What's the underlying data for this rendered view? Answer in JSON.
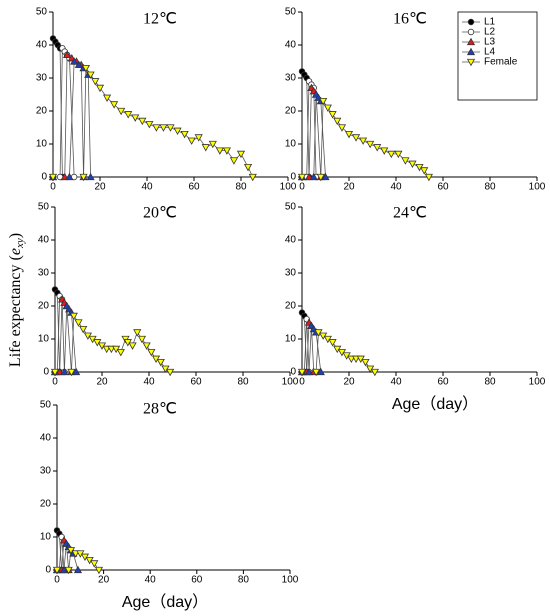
{
  "ylabel": [
    "Life expectancy (",
    "e",
    "xy",
    ")"
  ],
  "chart_data": [
    {
      "type": "line",
      "title": "12℃",
      "xlim": [
        0,
        100
      ],
      "ylim": [
        0,
        50
      ],
      "xticks": [
        0,
        20,
        40,
        60,
        80,
        100
      ],
      "yticks": [
        0,
        10,
        20,
        30,
        40,
        50
      ],
      "series": [
        {
          "name": "L1",
          "color": "#000000",
          "marker": "circle",
          "x": [
            0,
            1,
            2,
            3,
            4
          ],
          "values": [
            42,
            41,
            40,
            39,
            0
          ]
        },
        {
          "name": "L2",
          "color": "#ffffff",
          "marker": "circle",
          "x": [
            0,
            3,
            4,
            5,
            6,
            7,
            9
          ],
          "values": [
            0,
            0,
            39,
            38,
            37,
            36,
            0
          ]
        },
        {
          "name": "L3",
          "color": "#e31a1c",
          "marker": "triangle",
          "x": [
            0,
            5,
            6,
            8,
            10,
            12,
            13
          ],
          "values": [
            0,
            0,
            37,
            36,
            35,
            34,
            0
          ]
        },
        {
          "name": "L4",
          "color": "#1f3fbf",
          "marker": "triangle",
          "x": [
            0,
            7,
            9,
            11,
            13,
            15,
            16
          ],
          "values": [
            0,
            0,
            35,
            34,
            33,
            31,
            0
          ]
        },
        {
          "name": "Female",
          "color": "#ffff00",
          "marker": "triangle-down",
          "x": [
            0,
            13,
            14,
            16,
            18,
            20,
            23,
            26,
            29,
            32,
            35,
            38,
            41,
            44,
            47,
            50,
            53,
            56,
            59,
            62,
            65,
            68,
            71,
            74,
            77,
            80,
            83,
            85
          ],
          "values": [
            0,
            0,
            33,
            31,
            29,
            27,
            24,
            22,
            20,
            19,
            18,
            17,
            16,
            15,
            15,
            15,
            14,
            13,
            11,
            12,
            9,
            10,
            8,
            8,
            5,
            7,
            3,
            0
          ]
        }
      ]
    },
    {
      "type": "line",
      "title": "16℃",
      "legend": "top-right",
      "xlim": [
        0,
        100
      ],
      "ylim": [
        0,
        50
      ],
      "xticks": [
        0,
        20,
        40,
        60,
        80,
        100
      ],
      "yticks": [
        0,
        10,
        20,
        30,
        40,
        50
      ],
      "series": [
        {
          "name": "L1",
          "color": "#000000",
          "marker": "circle",
          "x": [
            0,
            1,
            2,
            3
          ],
          "values": [
            32,
            31,
            30,
            0
          ]
        },
        {
          "name": "L2",
          "color": "#ffffff",
          "marker": "circle",
          "x": [
            0,
            2,
            3,
            4,
            5,
            6
          ],
          "values": [
            0,
            0,
            29,
            28,
            27,
            0
          ]
        },
        {
          "name": "L3",
          "color": "#e31a1c",
          "marker": "triangle",
          "x": [
            0,
            3,
            4,
            5,
            6,
            8
          ],
          "values": [
            0,
            0,
            27,
            26,
            25,
            0
          ]
        },
        {
          "name": "L4",
          "color": "#1f3fbf",
          "marker": "triangle",
          "x": [
            0,
            5,
            6,
            7,
            8,
            10
          ],
          "values": [
            0,
            0,
            25,
            24,
            23,
            0
          ]
        },
        {
          "name": "Female",
          "color": "#ffff00",
          "marker": "triangle-down",
          "x": [
            0,
            8,
            9,
            11,
            13,
            15,
            17,
            20,
            23,
            26,
            29,
            32,
            35,
            38,
            41,
            44,
            47,
            50,
            52,
            54
          ],
          "values": [
            0,
            0,
            23,
            21,
            19,
            17,
            15,
            13,
            12,
            11,
            10,
            9,
            8,
            7,
            7,
            5,
            4,
            3,
            2,
            0
          ]
        }
      ]
    },
    {
      "type": "line",
      "title": "20℃",
      "xlim": [
        0,
        100
      ],
      "ylim": [
        0,
        50
      ],
      "xticks": [
        0,
        20,
        40,
        60,
        80,
        100
      ],
      "yticks": [
        0,
        10,
        20,
        30,
        40,
        50
      ],
      "series": [
        {
          "name": "L1",
          "color": "#000000",
          "marker": "circle",
          "x": [
            0,
            1,
            2
          ],
          "values": [
            25,
            24,
            0
          ]
        },
        {
          "name": "L2",
          "color": "#ffffff",
          "marker": "circle",
          "x": [
            0,
            1,
            2,
            3,
            4
          ],
          "values": [
            0,
            0,
            23,
            22,
            0
          ]
        },
        {
          "name": "L3",
          "color": "#e31a1c",
          "marker": "triangle",
          "x": [
            0,
            2,
            3,
            4,
            5,
            7
          ],
          "values": [
            0,
            0,
            22,
            21,
            20,
            0
          ]
        },
        {
          "name": "L4",
          "color": "#1f3fbf",
          "marker": "triangle",
          "x": [
            0,
            4,
            5,
            6,
            7,
            9
          ],
          "values": [
            0,
            0,
            20,
            19,
            18,
            0
          ]
        },
        {
          "name": "Female",
          "color": "#ffff00",
          "marker": "triangle-down",
          "x": [
            0,
            7,
            8,
            10,
            12,
            14,
            16,
            18,
            20,
            22,
            24,
            26,
            28,
            30,
            31,
            33,
            35,
            37,
            39,
            41,
            43,
            45,
            47,
            49
          ],
          "values": [
            0,
            0,
            17,
            15,
            13,
            11,
            10,
            9,
            8,
            7,
            7,
            7,
            6,
            10,
            9,
            8,
            12,
            10,
            8,
            6,
            4,
            3,
            1,
            0
          ]
        }
      ]
    },
    {
      "type": "line",
      "title": "24℃",
      "xlabel": "Age（day）",
      "xlim": [
        0,
        100
      ],
      "ylim": [
        0,
        50
      ],
      "xticks": [
        0,
        20,
        40,
        60,
        80,
        100
      ],
      "yticks": [
        0,
        10,
        20,
        30,
        40,
        50
      ],
      "series": [
        {
          "name": "L1",
          "color": "#000000",
          "marker": "circle",
          "x": [
            0,
            1,
            2
          ],
          "values": [
            18,
            17,
            0
          ]
        },
        {
          "name": "L2",
          "color": "#ffffff",
          "marker": "circle",
          "x": [
            0,
            1,
            2,
            3
          ],
          "values": [
            0,
            0,
            16,
            0
          ]
        },
        {
          "name": "L3",
          "color": "#e31a1c",
          "marker": "triangle",
          "x": [
            0,
            2,
            3,
            4,
            5
          ],
          "values": [
            0,
            0,
            15,
            14,
            0
          ]
        },
        {
          "name": "L4",
          "color": "#1f3fbf",
          "marker": "triangle",
          "x": [
            0,
            3,
            4,
            5,
            6,
            8
          ],
          "values": [
            0,
            0,
            14,
            13,
            12,
            0
          ]
        },
        {
          "name": "Female",
          "color": "#ffff00",
          "marker": "triangle-down",
          "x": [
            0,
            6,
            7,
            9,
            11,
            13,
            15,
            17,
            19,
            21,
            23,
            25,
            27,
            29,
            31
          ],
          "values": [
            0,
            0,
            12,
            11,
            10,
            9,
            7,
            6,
            5,
            4,
            4,
            4,
            3,
            1,
            0
          ]
        }
      ]
    },
    {
      "type": "line",
      "title": "28℃",
      "xlabel": "Age（day）",
      "xlim": [
        0,
        100
      ],
      "ylim": [
        0,
        50
      ],
      "xticks": [
        0,
        20,
        40,
        60,
        80,
        100
      ],
      "yticks": [
        0,
        10,
        20,
        30,
        40,
        50
      ],
      "series": [
        {
          "name": "L1",
          "color": "#000000",
          "marker": "circle",
          "x": [
            0,
            1,
            2
          ],
          "values": [
            12,
            11,
            0
          ]
        },
        {
          "name": "L2",
          "color": "#ffffff",
          "marker": "circle",
          "x": [
            0,
            1,
            2,
            3
          ],
          "values": [
            0,
            0,
            10,
            0
          ]
        },
        {
          "name": "L3",
          "color": "#e31a1c",
          "marker": "triangle",
          "x": [
            0,
            2,
            3,
            4,
            5
          ],
          "values": [
            0,
            0,
            9,
            8,
            0
          ]
        },
        {
          "name": "L4",
          "color": "#1f3fbf",
          "marker": "triangle",
          "x": [
            0,
            3,
            4,
            5,
            6,
            7,
            9
          ],
          "values": [
            0,
            0,
            8,
            7,
            6,
            5,
            0
          ]
        },
        {
          "name": "Female",
          "color": "#ffff00",
          "marker": "triangle-down",
          "x": [
            0,
            5,
            6,
            8,
            10,
            12,
            14,
            16,
            18
          ],
          "values": [
            0,
            0,
            6,
            5,
            5,
            4,
            3,
            2,
            0
          ]
        }
      ]
    }
  ]
}
